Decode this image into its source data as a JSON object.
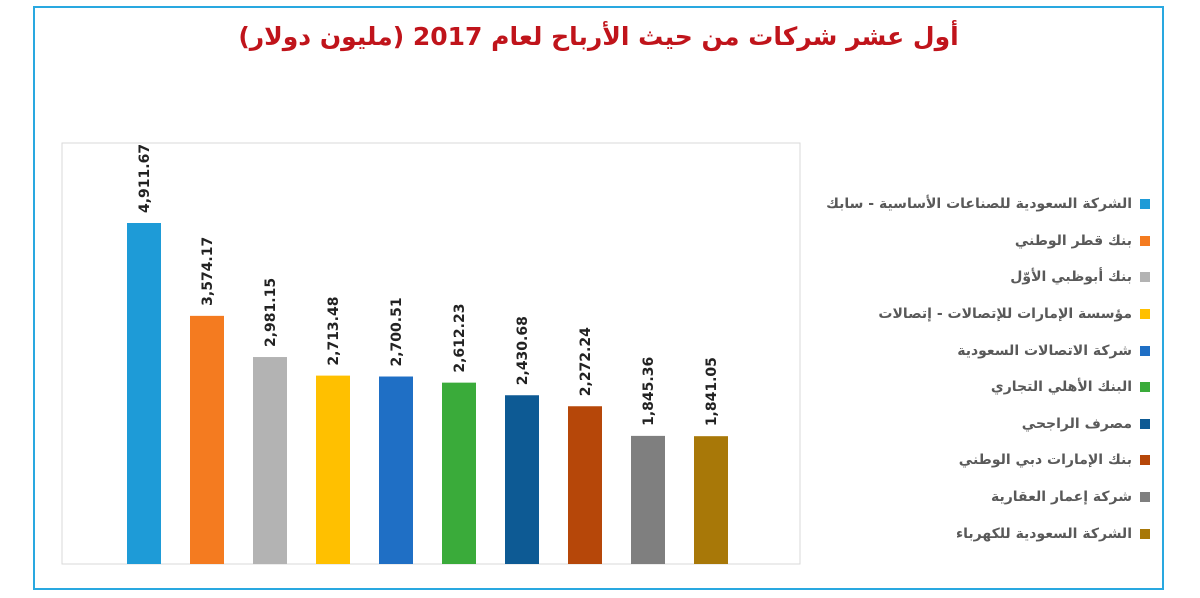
{
  "chart_data": {
    "type": "bar",
    "title": "أول عشر شركات من حيث الأرباح لعام 2017 (مليون دولار)",
    "xlabel": "",
    "ylabel": "",
    "ylim": [
      0,
      6000
    ],
    "grid": false,
    "legend_position": "right",
    "categories": [
      "الشركة السعودية للصناعات الأساسية - سابك",
      "بنك قطر الوطني",
      "بنك أبوظبي الأوّل",
      "مؤسسة الإمارات للإتصالات - إتصالات",
      "شركة الاتصالات السعودية",
      "البنك الأهلي التجاري",
      "مصرف الراجحي",
      "بنك الإمارات دبي الوطني",
      "شركة إعمار العقارية",
      "الشركة السعودية للكهرباء"
    ],
    "values": [
      4911.67,
      3574.17,
      2981.15,
      2713.48,
      2700.51,
      2612.23,
      2430.68,
      2272.24,
      1845.36,
      1841.05
    ],
    "value_labels": [
      "4,911.67",
      "3,574.17",
      "2,981.15",
      "2,713.48",
      "2,700.51",
      "2,612.23",
      "2,430.68",
      "2,272.24",
      "1,845.36",
      "1,841.05"
    ],
    "colors": [
      "#1e9bd7",
      "#f47b20",
      "#b3b3b3",
      "#ffc000",
      "#1f6fc5",
      "#3aab3a",
      "#0d5a94",
      "#b64709",
      "#7f7f7f",
      "#a87808"
    ],
    "title_color": "#c0141b",
    "frame_color": "#29a8e0"
  }
}
